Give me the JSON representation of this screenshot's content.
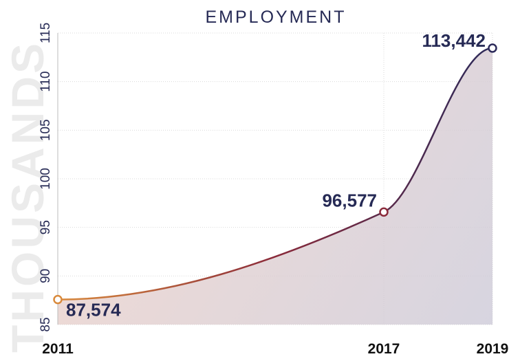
{
  "chart_data": {
    "type": "area",
    "title": "EMPLOYMENT",
    "ylabel": "THOUSANDS",
    "xlabel": "",
    "x": [
      "2011",
      "2017",
      "2019"
    ],
    "values": [
      87.574,
      96.577,
      113.442
    ],
    "data_labels": [
      "87,574",
      "96,577",
      "113,442"
    ],
    "ylim": [
      85,
      115
    ],
    "yticks": [
      85,
      90,
      95,
      100,
      105,
      110,
      115
    ],
    "grid": true,
    "colors": {
      "start": "#d98a3c",
      "middle": "#8a2a3a",
      "end": "#2c2a5a",
      "fill_start": "#f0d2c8",
      "fill_end": "#cdcad8",
      "text": "#262a55"
    }
  }
}
